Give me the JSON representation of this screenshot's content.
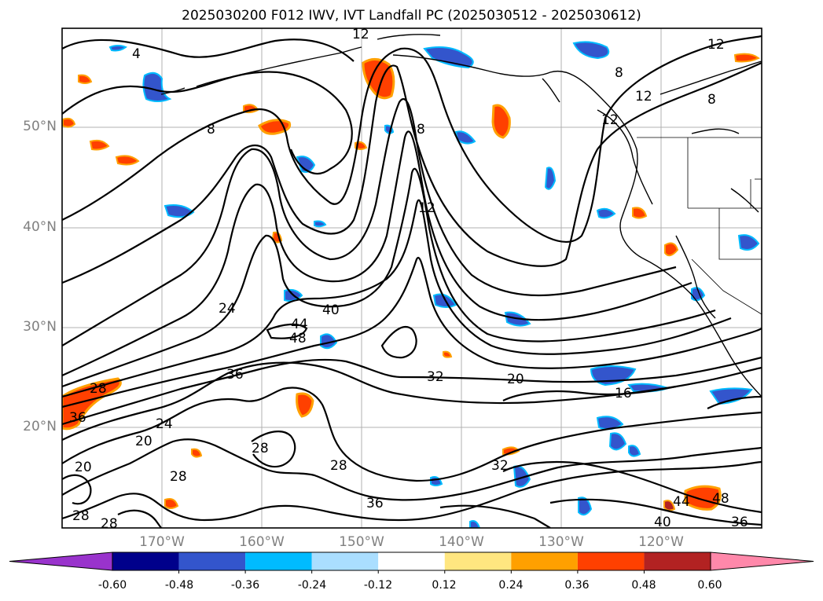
{
  "title": "2025030200 F012 IWV, IVT Landfall PC (2025030512 - 2025030612)",
  "map": {
    "lat_labels": [
      "50°N",
      "40°N",
      "30°N",
      "20°N"
    ],
    "lon_labels": [
      "170°W",
      "160°W",
      "150°W",
      "140°W",
      "130°W",
      "120°W"
    ],
    "contour_labels": [
      "4",
      "12",
      "8",
      "12",
      "8",
      "8",
      "12",
      "8",
      "12",
      "12",
      "24",
      "40",
      "44",
      "48",
      "36",
      "32",
      "20",
      "16",
      "28",
      "36",
      "20",
      "24",
      "20",
      "28",
      "28",
      "28",
      "28",
      "32",
      "36",
      "44",
      "48",
      "40",
      "36",
      "28"
    ]
  },
  "colorbar": {
    "ticks": [
      "-0.60",
      "-0.48",
      "-0.36",
      "-0.24",
      "-0.12",
      "0.12",
      "0.24",
      "0.36",
      "0.48",
      "0.60"
    ],
    "colors": [
      "#9933cc",
      "#00008b",
      "#3355cc",
      "#00bbff",
      "#aadeff",
      "#ffffff",
      "#ffe680",
      "#ffa000",
      "#ff4000",
      "#b22222",
      "#ff88aa"
    ]
  }
}
